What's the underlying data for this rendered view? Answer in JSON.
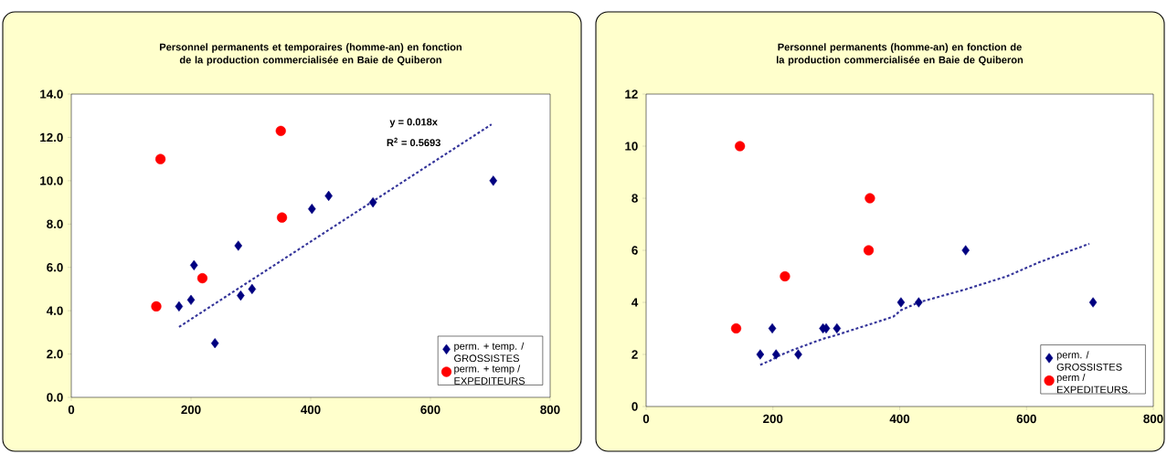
{
  "chart_data": [
    {
      "type": "scatter",
      "title": "Personnel permanents et temporaires (homme-an) en fonction de la production commercialisée en Baie de Quiberon",
      "xlim": [
        0,
        800
      ],
      "xticks": [
        0,
        200,
        400,
        600,
        800
      ],
      "ylim": [
        0,
        14
      ],
      "yticks": [
        {
          "value": 0,
          "label": "0.0"
        },
        {
          "value": 2,
          "label": "2.0"
        },
        {
          "value": 4,
          "label": "4.0"
        },
        {
          "value": 6,
          "label": "6.0"
        },
        {
          "value": 8,
          "label": "8.0"
        },
        {
          "value": 10,
          "label": "10.0"
        },
        {
          "value": 12,
          "label": "12.0"
        },
        {
          "value": 14,
          "label": "14.0"
        }
      ],
      "legend": "bottom right",
      "grid": false,
      "annotations": [
        "y = 0.018x",
        "R$^{2}$ = 0.5693"
      ],
      "series": [
        {
          "name": "perm. + temp. / GROSSISTES",
          "marker": "diamond",
          "color": "#000080",
          "x": [
            180,
            200,
            205,
            240,
            279,
            283,
            302,
            402,
            430,
            504,
            705
          ],
          "values": [
            4.2,
            4.5,
            6.1,
            2.5,
            7.0,
            4.7,
            5.0,
            8.7,
            9.3,
            9.0,
            10.0
          ]
        },
        {
          "name": "perm. + temp / EXPEDITEURS",
          "marker": "circle",
          "color": "#ff0000",
          "x": [
            142,
            149,
            219,
            350,
            352
          ],
          "values": [
            4.2,
            11.0,
            5.5,
            12.3,
            8.3
          ]
        },
        {
          "type": "line",
          "line_style": "dotted",
          "color": "#333399",
          "x": [
            180,
            702
          ],
          "values": [
            3.25,
            12.6
          ]
        }
      ]
    },
    {
      "type": "scatter",
      "title": "Personnel permanents  (homme-an) en fonction de la production commercialisée en Baie de Quiberon",
      "xlim": [
        0,
        800
      ],
      "xticks": [
        0,
        200,
        400,
        600,
        800
      ],
      "ylim": [
        0,
        12
      ],
      "yticks": [
        0,
        2,
        4,
        6,
        8,
        10,
        12
      ],
      "legend": "bottom right",
      "grid": false,
      "series": [
        {
          "name": "perm. / GROSSISTES",
          "marker": "diamond",
          "color": "#000080",
          "x": [
            180,
            199,
            205,
            240,
            279,
            284,
            301,
            402,
            430,
            504,
            705
          ],
          "values": [
            2,
            3,
            2,
            2,
            3,
            3,
            3,
            4,
            4,
            6,
            4
          ]
        },
        {
          "name": "perm / EXPEDITEURS.",
          "marker": "circle",
          "color": "#ff0000",
          "x": [
            142,
            148,
            219,
            351,
            353
          ],
          "values": [
            3,
            10,
            5,
            6,
            8
          ]
        },
        {
          "type": "line",
          "line_style": "dotted",
          "color": "#333399",
          "x": [
            180,
            199,
            205,
            229,
            240,
            279,
            301,
            390,
            402,
            430,
            504,
            569,
            621,
            699
          ],
          "values": [
            1.6,
            1.8,
            1.9,
            2.15,
            2.25,
            2.6,
            2.75,
            3.45,
            3.7,
            4.0,
            4.5,
            5.0,
            5.55,
            6.25
          ]
        }
      ]
    }
  ]
}
